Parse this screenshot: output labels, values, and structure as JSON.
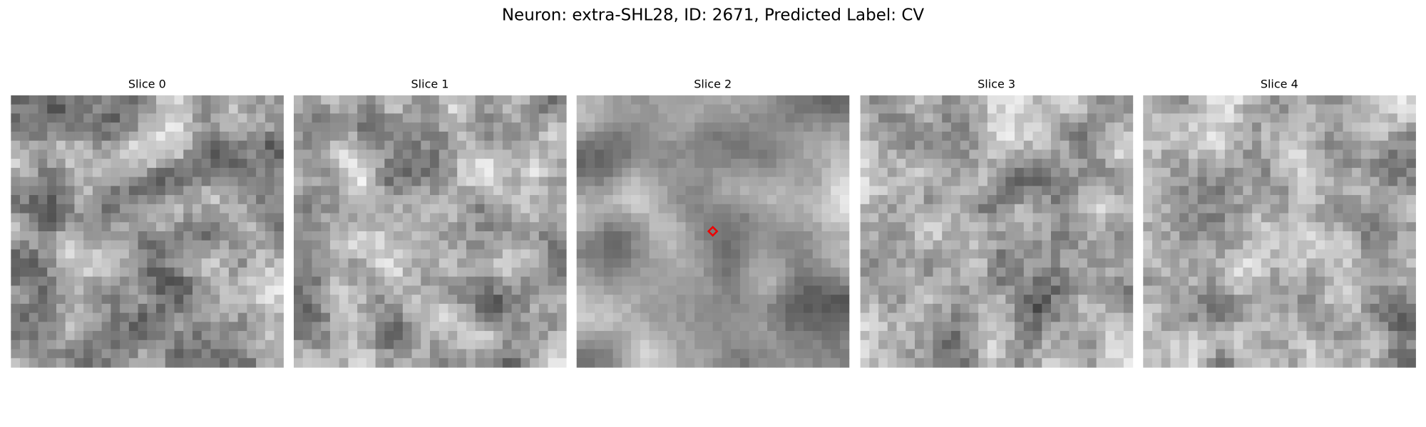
{
  "title": "Neuron: extra-SHL28, ID: 2671, Predicted Label: CV",
  "panels": [
    {
      "title": "Slice 0"
    },
    {
      "title": "Slice 1"
    },
    {
      "title": "Slice 2"
    },
    {
      "title": "Slice 3"
    },
    {
      "title": "Slice 4"
    }
  ]
}
